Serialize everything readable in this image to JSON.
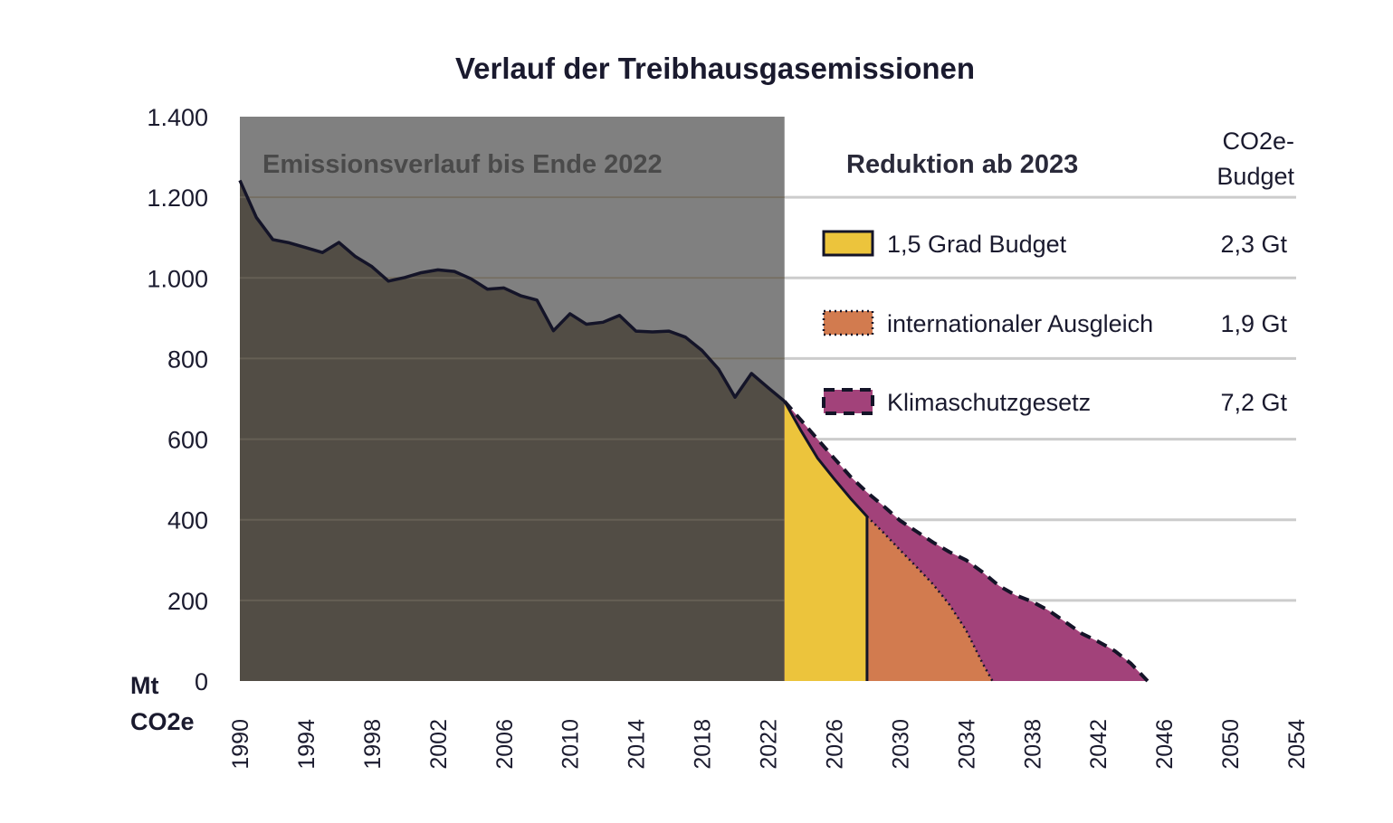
{
  "chart_data": {
    "type": "area",
    "title": "Verlauf der Treibhausgasemissionen",
    "ylabel_line1": "Mt",
    "ylabel_line2": "CO2e",
    "ylim": [
      0,
      1400
    ],
    "xlim": [
      1990,
      2054
    ],
    "yticks": [
      {
        "value": 0,
        "label": "0"
      },
      {
        "value": 200,
        "label": "200"
      },
      {
        "value": 400,
        "label": "400"
      },
      {
        "value": 600,
        "label": "600"
      },
      {
        "value": 800,
        "label": "800"
      },
      {
        "value": 1000,
        "label": "1.000"
      },
      {
        "value": 1200,
        "label": "1.200"
      },
      {
        "value": 1400,
        "label": "1.400"
      }
    ],
    "xticks": [
      {
        "value": 1990,
        "label": "1990"
      },
      {
        "value": 1994,
        "label": "1994"
      },
      {
        "value": 1998,
        "label": "1998"
      },
      {
        "value": 2002,
        "label": "2002"
      },
      {
        "value": 2006,
        "label": "2006"
      },
      {
        "value": 2010,
        "label": "2010"
      },
      {
        "value": 2014,
        "label": "2014"
      },
      {
        "value": 2018,
        "label": "2018"
      },
      {
        "value": 2022,
        "label": "2022"
      },
      {
        "value": 2026,
        "label": "2026"
      },
      {
        "value": 2030,
        "label": "2030"
      },
      {
        "value": 2034,
        "label": "2034"
      },
      {
        "value": 2038,
        "label": "2038"
      },
      {
        "value": 2042,
        "label": "2042"
      },
      {
        "value": 2046,
        "label": "2046"
      },
      {
        "value": 2050,
        "label": "2050"
      },
      {
        "value": 2054,
        "label": "2054"
      }
    ],
    "grid": true,
    "historic_label": "Emissionsverlauf bis Ende 2022",
    "reduction_label": "Reduktion ab 2023",
    "budget_header": [
      "CO2e-",
      "Budget"
    ],
    "historic": {
      "x": [
        1990,
        1991,
        1992,
        1993,
        1994,
        1995,
        1996,
        1997,
        1998,
        1999,
        2000,
        2001,
        2002,
        2003,
        2004,
        2005,
        2006,
        2007,
        2008,
        2009,
        2010,
        2011,
        2012,
        2013,
        2014,
        2015,
        2016,
        2017,
        2018,
        2019,
        2020,
        2021,
        2022,
        2023
      ],
      "y": [
        1242,
        1150,
        1095,
        1087,
        1075,
        1063,
        1088,
        1053,
        1028,
        992,
        1001,
        1013,
        1020,
        1016,
        998,
        972,
        975,
        956,
        945,
        869,
        911,
        885,
        890,
        907,
        868,
        866,
        868,
        853,
        820,
        774,
        704,
        763,
        728,
        694
      ]
    },
    "series": [
      {
        "name": "Klimaschutzgesetz",
        "budget": "7,2 Gt",
        "color": "#a2427a",
        "border": "dashed",
        "x": [
          2023,
          2024,
          2025,
          2026,
          2027,
          2028,
          2029,
          2030,
          2031,
          2032,
          2033,
          2034,
          2035,
          2036,
          2037,
          2038,
          2039,
          2040,
          2041,
          2042,
          2043,
          2044,
          2045
        ],
        "y": [
          694,
          647,
          600,
          553,
          507,
          468,
          434,
          398,
          371,
          344,
          320,
          300,
          270,
          236,
          213,
          197,
          175,
          147,
          118,
          98,
          75,
          43,
          0
        ]
      },
      {
        "name": "internationaler Ausgleich",
        "budget": "1,9 Gt",
        "color": "#d27b4f",
        "border": "dotted",
        "x": [
          2028,
          2029,
          2030,
          2031,
          2032,
          2033,
          2034,
          2035,
          2035.6
        ],
        "y": [
          408,
          368,
          325,
          283,
          240,
          189,
          126,
          44,
          0
        ]
      },
      {
        "name": "1,5 Grad Budget",
        "budget": "2,3 Gt",
        "color": "#ecc43c",
        "border": "solid",
        "x": [
          2023,
          2024,
          2025,
          2026,
          2027,
          2028,
          2028
        ],
        "y": [
          694,
          621,
          553,
          502,
          453,
          408,
          0
        ]
      }
    ]
  }
}
